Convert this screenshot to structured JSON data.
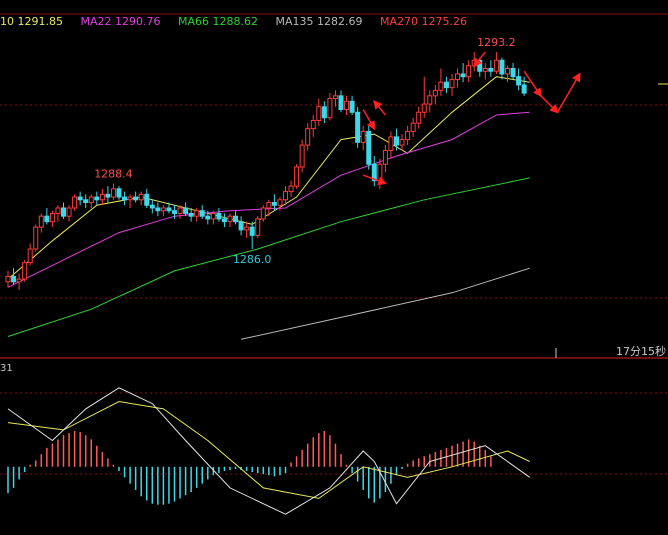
{
  "chart_data": {
    "type": "candlestick",
    "ma_legend": [
      {
        "label": "10",
        "value": "1291.85",
        "color": "#e8e85a"
      },
      {
        "label": "MA22",
        "value": "1290.76",
        "color": "#e040e0"
      },
      {
        "label": "MA66",
        "value": "1288.62",
        "color": "#2fd12f"
      },
      {
        "label": "MA135",
        "value": "1282.69",
        "color": "#b8b8b8"
      },
      {
        "label": "MA270",
        "value": "1275.26",
        "color": "#ff4040"
      }
    ],
    "annotations": [
      {
        "text": "1288.4",
        "color": "#ff4d4d",
        "bar": 19,
        "at": "high"
      },
      {
        "text": "1286.0",
        "color": "#35c8d8",
        "bar": 44,
        "at": "low"
      },
      {
        "text": "1293.2",
        "color": "#ff4d4d",
        "bar": 88,
        "at": "high"
      }
    ],
    "ylim": [
      1282.6,
      1294.3
    ],
    "candles": [
      [
        1284.8,
        1285.2,
        1284.6,
        1285.0
      ],
      [
        1285.0,
        1285.3,
        1284.7,
        1284.8
      ],
      [
        1284.8,
        1285.1,
        1284.5,
        1284.9
      ],
      [
        1284.9,
        1285.6,
        1284.8,
        1285.5
      ],
      [
        1285.5,
        1286.2,
        1285.4,
        1286.0
      ],
      [
        1286.0,
        1286.9,
        1285.9,
        1286.8
      ],
      [
        1286.8,
        1287.3,
        1286.6,
        1287.2
      ],
      [
        1287.2,
        1287.5,
        1286.9,
        1287.0
      ],
      [
        1287.0,
        1287.4,
        1286.8,
        1287.3
      ],
      [
        1287.3,
        1287.6,
        1287.0,
        1287.5
      ],
      [
        1287.5,
        1287.7,
        1287.1,
        1287.2
      ],
      [
        1287.2,
        1287.6,
        1287.0,
        1287.5
      ],
      [
        1287.5,
        1288.0,
        1287.4,
        1287.9
      ],
      [
        1287.9,
        1288.1,
        1287.6,
        1287.8
      ],
      [
        1287.8,
        1288.0,
        1287.5,
        1287.7
      ],
      [
        1287.7,
        1288.0,
        1287.5,
        1287.9
      ],
      [
        1287.9,
        1288.1,
        1287.6,
        1287.8
      ],
      [
        1287.8,
        1288.2,
        1287.6,
        1288.0
      ],
      [
        1288.0,
        1288.3,
        1287.7,
        1287.9
      ],
      [
        1287.9,
        1288.4,
        1287.8,
        1288.2
      ],
      [
        1288.2,
        1288.3,
        1287.8,
        1287.9
      ],
      [
        1287.9,
        1288.1,
        1287.6,
        1287.8
      ],
      [
        1287.8,
        1288.0,
        1287.5,
        1287.9
      ],
      [
        1287.9,
        1288.1,
        1287.7,
        1287.8
      ],
      [
        1287.8,
        1288.1,
        1287.6,
        1288.0
      ],
      [
        1288.0,
        1288.2,
        1287.5,
        1287.6
      ],
      [
        1287.6,
        1287.8,
        1287.3,
        1287.5
      ],
      [
        1287.5,
        1287.7,
        1287.2,
        1287.4
      ],
      [
        1287.4,
        1287.6,
        1287.2,
        1287.5
      ],
      [
        1287.5,
        1287.7,
        1287.3,
        1287.4
      ],
      [
        1287.4,
        1287.6,
        1287.1,
        1287.3
      ],
      [
        1287.3,
        1287.6,
        1287.1,
        1287.5
      ],
      [
        1287.5,
        1287.7,
        1287.2,
        1287.3
      ],
      [
        1287.3,
        1287.5,
        1287.0,
        1287.2
      ],
      [
        1287.2,
        1287.5,
        1287.0,
        1287.4
      ],
      [
        1287.4,
        1287.6,
        1287.1,
        1287.2
      ],
      [
        1287.2,
        1287.4,
        1286.9,
        1287.1
      ],
      [
        1287.1,
        1287.4,
        1286.9,
        1287.3
      ],
      [
        1287.3,
        1287.5,
        1287.0,
        1287.1
      ],
      [
        1287.1,
        1287.3,
        1286.8,
        1287.0
      ],
      [
        1287.0,
        1287.3,
        1286.8,
        1287.2
      ],
      [
        1287.2,
        1287.4,
        1286.9,
        1287.0
      ],
      [
        1287.0,
        1287.2,
        1286.5,
        1286.7
      ],
      [
        1286.7,
        1287.0,
        1286.4,
        1286.8
      ],
      [
        1286.8,
        1287.0,
        1286.0,
        1286.5
      ],
      [
        1286.5,
        1287.2,
        1286.4,
        1287.1
      ],
      [
        1287.1,
        1287.6,
        1287.0,
        1287.5
      ],
      [
        1287.5,
        1287.8,
        1287.2,
        1287.7
      ],
      [
        1287.7,
        1288.0,
        1287.4,
        1287.6
      ],
      [
        1287.6,
        1287.9,
        1287.4,
        1287.8
      ],
      [
        1287.8,
        1288.3,
        1287.6,
        1288.1
      ],
      [
        1288.1,
        1288.5,
        1287.9,
        1288.3
      ],
      [
        1288.3,
        1289.1,
        1288.2,
        1289.0
      ],
      [
        1289.0,
        1290.0,
        1288.8,
        1289.8
      ],
      [
        1289.8,
        1290.6,
        1289.6,
        1290.4
      ],
      [
        1290.4,
        1290.9,
        1290.1,
        1290.7
      ],
      [
        1290.7,
        1291.5,
        1290.5,
        1291.2
      ],
      [
        1291.2,
        1291.4,
        1290.6,
        1290.8
      ],
      [
        1290.8,
        1291.7,
        1290.7,
        1291.5
      ],
      [
        1291.5,
        1291.8,
        1291.2,
        1291.6
      ],
      [
        1291.6,
        1291.8,
        1291.0,
        1291.1
      ],
      [
        1291.1,
        1291.6,
        1290.9,
        1291.4
      ],
      [
        1291.4,
        1291.6,
        1290.9,
        1291.0
      ],
      [
        1291.0,
        1291.2,
        1289.7,
        1289.9
      ],
      [
        1289.9,
        1290.5,
        1289.6,
        1290.3
      ],
      [
        1290.3,
        1290.5,
        1288.9,
        1289.1
      ],
      [
        1289.1,
        1289.4,
        1288.3,
        1288.5
      ],
      [
        1288.5,
        1289.3,
        1288.2,
        1289.1
      ],
      [
        1289.1,
        1289.8,
        1288.8,
        1289.6
      ],
      [
        1289.6,
        1290.3,
        1289.3,
        1290.1
      ],
      [
        1290.1,
        1290.4,
        1289.6,
        1289.8
      ],
      [
        1289.8,
        1290.2,
        1289.6,
        1290.0
      ],
      [
        1290.0,
        1290.5,
        1289.8,
        1290.3
      ],
      [
        1290.3,
        1290.8,
        1290.1,
        1290.6
      ],
      [
        1290.6,
        1291.2,
        1290.4,
        1291.0
      ],
      [
        1291.0,
        1292.3,
        1290.8,
        1291.3
      ],
      [
        1291.3,
        1291.8,
        1291.0,
        1291.6
      ],
      [
        1291.6,
        1292.0,
        1291.3,
        1291.8
      ],
      [
        1291.8,
        1292.6,
        1291.6,
        1292.1
      ],
      [
        1292.1,
        1292.3,
        1291.7,
        1291.9
      ],
      [
        1291.9,
        1292.4,
        1291.6,
        1292.2
      ],
      [
        1292.2,
        1292.6,
        1291.9,
        1292.4
      ],
      [
        1292.4,
        1292.8,
        1292.1,
        1292.3
      ],
      [
        1292.3,
        1292.9,
        1292.1,
        1292.7
      ],
      [
        1292.7,
        1293.2,
        1292.5,
        1292.9
      ],
      [
        1292.9,
        1293.0,
        1292.3,
        1292.5
      ],
      [
        1292.5,
        1292.8,
        1292.2,
        1292.6
      ],
      [
        1292.6,
        1292.9,
        1292.3,
        1292.5
      ],
      [
        1292.5,
        1293.2,
        1292.4,
        1292.9
      ],
      [
        1292.9,
        1293.0,
        1292.2,
        1292.4
      ],
      [
        1292.4,
        1292.7,
        1292.1,
        1292.6
      ],
      [
        1292.6,
        1292.8,
        1292.2,
        1292.3
      ],
      [
        1292.3,
        1292.6,
        1291.8,
        1292.0
      ],
      [
        1292.0,
        1292.3,
        1291.6,
        1291.7
      ]
    ],
    "ma_lines": [
      {
        "name": "10",
        "color": "#e8e85a",
        "points": [
          [
            0,
            1284.9
          ],
          [
            8,
            1286.3
          ],
          [
            16,
            1287.6
          ],
          [
            24,
            1287.9
          ],
          [
            34,
            1287.4
          ],
          [
            44,
            1286.9
          ],
          [
            52,
            1287.9
          ],
          [
            60,
            1290.0
          ],
          [
            66,
            1290.2
          ],
          [
            72,
            1289.5
          ],
          [
            80,
            1291.0
          ],
          [
            88,
            1292.3
          ],
          [
            94,
            1292.1
          ]
        ]
      },
      {
        "name": "MA22",
        "color": "#e040e0",
        "points": [
          [
            0,
            1284.6
          ],
          [
            10,
            1285.6
          ],
          [
            20,
            1286.6
          ],
          [
            30,
            1287.2
          ],
          [
            40,
            1287.4
          ],
          [
            50,
            1287.5
          ],
          [
            60,
            1288.7
          ],
          [
            70,
            1289.4
          ],
          [
            80,
            1290.0
          ],
          [
            88,
            1290.9
          ],
          [
            94,
            1291.0
          ]
        ]
      },
      {
        "name": "MA66",
        "color": "#2fd12f",
        "points": [
          [
            0,
            1282.8
          ],
          [
            15,
            1283.8
          ],
          [
            30,
            1285.2
          ],
          [
            45,
            1286.0
          ],
          [
            60,
            1287.0
          ],
          [
            75,
            1287.8
          ],
          [
            94,
            1288.6
          ]
        ]
      },
      {
        "name": "MA135",
        "color": "#b8b8b8",
        "points": [
          [
            42,
            1282.7
          ],
          [
            60,
            1283.5
          ],
          [
            80,
            1284.4
          ],
          [
            94,
            1285.3
          ]
        ]
      }
    ],
    "arrows": [
      {
        "from": [
          68,
          1290.9
        ],
        "to": [
          66,
          1291.4
        ]
      },
      {
        "from": [
          64,
          1291.1
        ],
        "to": [
          66,
          1290.4
        ]
      },
      {
        "from": [
          64,
          1288.7
        ],
        "to": [
          68,
          1288.4
        ]
      },
      {
        "from": [
          93,
          1292.5
        ],
        "to": [
          96,
          1291.6
        ]
      },
      {
        "from": [
          96,
          1291.6
        ],
        "to": [
          99,
          1291.0
        ]
      },
      {
        "from": [
          99,
          1291.0
        ],
        "to": [
          103,
          1292.4
        ]
      },
      {
        "from": [
          86,
          1293.2
        ],
        "to": [
          84,
          1292.7
        ]
      }
    ],
    "time_label": "17分15秒",
    "sub_label": "31",
    "oscillator": {
      "dif": [
        [
          0,
          0.55
        ],
        [
          8,
          0.25
        ],
        [
          14,
          0.55
        ],
        [
          20,
          0.75
        ],
        [
          26,
          0.6
        ],
        [
          32,
          0.25
        ],
        [
          40,
          -0.2
        ],
        [
          50,
          -0.45
        ],
        [
          58,
          -0.2
        ],
        [
          64,
          0.15
        ],
        [
          66,
          0.05
        ],
        [
          70,
          -0.35
        ],
        [
          76,
          0.05
        ],
        [
          86,
          0.2
        ],
        [
          94,
          -0.1
        ]
      ],
      "dea": [
        [
          0,
          0.42
        ],
        [
          10,
          0.35
        ],
        [
          20,
          0.62
        ],
        [
          28,
          0.55
        ],
        [
          36,
          0.25
        ],
        [
          46,
          -0.2
        ],
        [
          56,
          -0.3
        ],
        [
          64,
          0.0
        ],
        [
          72,
          -0.1
        ],
        [
          80,
          0.0
        ],
        [
          90,
          0.15
        ],
        [
          94,
          0.05
        ]
      ],
      "histogram": [
        -0.25,
        -0.2,
        -0.12,
        -0.05,
        0.02,
        0.06,
        0.12,
        0.18,
        0.22,
        0.26,
        0.3,
        0.32,
        0.34,
        0.33,
        0.3,
        0.26,
        0.2,
        0.14,
        0.08,
        0.02,
        -0.04,
        -0.1,
        -0.16,
        -0.22,
        -0.28,
        -0.32,
        -0.35,
        -0.36,
        -0.36,
        -0.35,
        -0.33,
        -0.3,
        -0.27,
        -0.24,
        -0.2,
        -0.16,
        -0.12,
        -0.08,
        -0.06,
        -0.04,
        -0.03,
        -0.02,
        -0.03,
        -0.04,
        -0.05,
        -0.06,
        -0.07,
        -0.08,
        -0.09,
        -0.08,
        -0.06,
        0.04,
        0.1,
        0.16,
        0.22,
        0.28,
        0.32,
        0.34,
        0.3,
        0.22,
        0.12,
        0.02,
        -0.06,
        -0.14,
        -0.22,
        -0.3,
        -0.34,
        -0.3,
        -0.24,
        -0.16,
        -0.08,
        -0.02,
        0.03,
        0.06,
        0.08,
        0.1,
        0.12,
        0.14,
        0.16,
        0.18,
        0.2,
        0.22,
        0.24,
        0.26,
        0.24,
        0.2,
        0.16,
        0.1
      ],
      "ylim": [
        -0.6,
        0.9
      ]
    }
  }
}
